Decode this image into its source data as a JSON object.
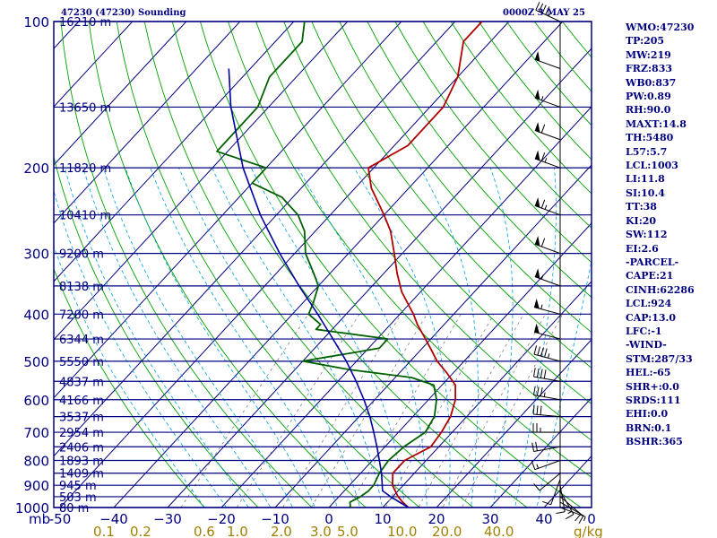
{
  "header": {
    "station": "47230 (47230) Sounding",
    "time": "0000Z  3 MAY 25"
  },
  "stats": [
    "WMO:47230",
    "TP:205",
    "MW:219",
    "FRZ:833",
    "WB0:837",
    "PW:0.89",
    "RH:90.0",
    "MAXT:14.8",
    "TH:5480",
    "L57:5.7",
    "LCL:1003",
    "LI:11.8",
    "SI:10.4",
    "TT:38",
    "KI:20",
    "SW:112",
    "EI:2.6",
    "-PARCEL-",
    "CAPE:21",
    "CINH:62286",
    "LCL:924",
    "CAP:13.0",
    "LFC:-1",
    "-WIND-",
    "STM:287/33",
    "HEL:-65",
    "SHR+:0.0",
    "SRDS:111",
    "EHI:0.0",
    "BRN:0.1",
    "BSHR:365"
  ],
  "colors": {
    "frame": "#000080",
    "isobar": "#000080",
    "isotherm": "#000080",
    "dry_adiabat": "#000080",
    "moist_adiabat": "#00a000",
    "mixing_ratio": "#00a0e0",
    "temperature": "#b00000",
    "dewpoint": "#006000",
    "parcel": "#0000a0",
    "wind_barb": "#000000",
    "axis_text": "#000080",
    "mixing_text": "#a08000"
  },
  "chart_data": {
    "type": "line",
    "diagram": "skew-T log-p",
    "pressure_ticks": [
      100,
      200,
      300,
      400,
      500,
      600,
      700,
      800,
      900,
      1000
    ],
    "temperature_ticks": [
      -50,
      -40,
      -30,
      -20,
      -10,
      0,
      10,
      20,
      30,
      40
    ],
    "temperature_tick_labels": [
      "-50",
      "−40",
      "−30",
      "−20",
      "−10",
      "0",
      "10",
      "20",
      "30",
      "40"
    ],
    "bottom_left_label": "mb",
    "mixing_ratio_labels": [
      "0.1",
      "0.2",
      "0.6",
      "1.0",
      "2.0",
      "3.0",
      "5.0",
      "10.0",
      "20.0",
      "40.0"
    ],
    "mixing_ratio_unit": "g/kg",
    "wind_axis_label": "0",
    "height_labels": [
      {
        "p": 100,
        "label": "16210 m"
      },
      {
        "p": 150,
        "label": "13650 m"
      },
      {
        "p": 200,
        "label": "11820 m"
      },
      {
        "p": 250,
        "label": "10410 m"
      },
      {
        "p": 300,
        "label": "9200 m"
      },
      {
        "p": 350,
        "label": "8138 m"
      },
      {
        "p": 400,
        "label": "7200 m"
      },
      {
        "p": 450,
        "label": "6344 m"
      },
      {
        "p": 500,
        "label": "5550 m"
      },
      {
        "p": 550,
        "label": "4837 m"
      },
      {
        "p": 600,
        "label": "4166 m"
      },
      {
        "p": 650,
        "label": "3537 m"
      },
      {
        "p": 700,
        "label": "2954 m"
      },
      {
        "p": 750,
        "label": "2406 m"
      },
      {
        "p": 800,
        "label": "1893 m"
      },
      {
        "p": 850,
        "label": "1409 m"
      },
      {
        "p": 900,
        "label": "945 m"
      },
      {
        "p": 950,
        "label": "503 m"
      },
      {
        "p": 1000,
        "label": "80 m"
      }
    ],
    "series": [
      {
        "kind": "temperature",
        "points": [
          [
            1006,
            15.0
          ],
          [
            1000,
            14.8
          ],
          [
            975,
            12.8
          ],
          [
            950,
            11.0
          ],
          [
            925,
            9.5
          ],
          [
            900,
            8.0
          ],
          [
            850,
            6.0
          ],
          [
            800,
            6.0
          ],
          [
            750,
            8.5
          ],
          [
            700,
            8.0
          ],
          [
            650,
            7.0
          ],
          [
            600,
            5.0
          ],
          [
            560,
            2.5
          ],
          [
            530,
            -1.0
          ],
          [
            500,
            -5.0
          ],
          [
            470,
            -8.5
          ],
          [
            450,
            -11.0
          ],
          [
            420,
            -15.0
          ],
          [
            400,
            -17.5
          ],
          [
            360,
            -23.5
          ],
          [
            330,
            -27.5
          ],
          [
            300,
            -31.5
          ],
          [
            270,
            -36.0
          ],
          [
            250,
            -40.0
          ],
          [
            220,
            -47.0
          ],
          [
            200,
            -51.0
          ],
          [
            180,
            -47.5
          ],
          [
            150,
            -47.5
          ],
          [
            130,
            -50.0
          ],
          [
            110,
            -55.0
          ],
          [
            100,
            -55.0
          ]
        ]
      },
      {
        "kind": "dewpoint",
        "points": [
          [
            1006,
            6.0
          ],
          [
            1000,
            4.0
          ],
          [
            975,
            3.0
          ],
          [
            950,
            4.0
          ],
          [
            925,
            4.5
          ],
          [
            900,
            4.5
          ],
          [
            850,
            3.5
          ],
          [
            800,
            3.0
          ],
          [
            750,
            3.5
          ],
          [
            700,
            5.0
          ],
          [
            650,
            4.0
          ],
          [
            600,
            1.5
          ],
          [
            560,
            -1.5
          ],
          [
            540,
            -7.0
          ],
          [
            520,
            -20.0
          ],
          [
            500,
            -30.0
          ],
          [
            480,
            -22.0
          ],
          [
            470,
            -18.0
          ],
          [
            450,
            -18.0
          ],
          [
            430,
            -33.0
          ],
          [
            420,
            -33.0
          ],
          [
            400,
            -37.0
          ],
          [
            380,
            -38.0
          ],
          [
            350,
            -40.0
          ],
          [
            330,
            -43.0
          ],
          [
            300,
            -48.0
          ],
          [
            270,
            -52.0
          ],
          [
            250,
            -56.0
          ],
          [
            230,
            -62.0
          ],
          [
            215,
            -70.0
          ],
          [
            200,
            -70.0
          ],
          [
            185,
            -82.0
          ],
          [
            170,
            -82.0
          ],
          [
            150,
            -82.0
          ],
          [
            130,
            -85.0
          ],
          [
            120,
            -85.0
          ],
          [
            110,
            -85.0
          ],
          [
            100,
            -88.0
          ]
        ]
      },
      {
        "kind": "parcel",
        "points": [
          [
            1000,
            14.8
          ],
          [
            975,
            12.2
          ],
          [
            950,
            9.6
          ],
          [
            924,
            7.1
          ],
          [
            900,
            6.1
          ],
          [
            850,
            3.9
          ],
          [
            800,
            1.3
          ],
          [
            750,
            -1.5
          ],
          [
            700,
            -4.6
          ],
          [
            650,
            -8.0
          ],
          [
            600,
            -12.0
          ],
          [
            550,
            -16.6
          ],
          [
            500,
            -21.9
          ],
          [
            450,
            -28.2
          ],
          [
            400,
            -35.3
          ],
          [
            350,
            -43.6
          ],
          [
            300,
            -52.8
          ],
          [
            250,
            -63.0
          ],
          [
            200,
            -74.3
          ],
          [
            150,
            -87.0
          ],
          [
            125,
            -94.0
          ]
        ]
      }
    ],
    "wind_profile": [
      {
        "p": 1000,
        "dir": 110,
        "speed": 5
      },
      {
        "p": 975,
        "dir": 120,
        "speed": 10
      },
      {
        "p": 950,
        "dir": 130,
        "speed": 10
      },
      {
        "p": 925,
        "dir": 150,
        "speed": 15
      },
      {
        "p": 900,
        "dir": 170,
        "speed": 10
      },
      {
        "p": 875,
        "dir": 200,
        "speed": 10
      },
      {
        "p": 850,
        "dir": 230,
        "speed": 10
      },
      {
        "p": 800,
        "dir": 250,
        "speed": 15
      },
      {
        "p": 750,
        "dir": 260,
        "speed": 20
      },
      {
        "p": 700,
        "dir": 270,
        "speed": 25
      },
      {
        "p": 650,
        "dir": 275,
        "speed": 30
      },
      {
        "p": 600,
        "dir": 280,
        "speed": 35
      },
      {
        "p": 550,
        "dir": 280,
        "speed": 40
      },
      {
        "p": 500,
        "dir": 285,
        "speed": 45
      },
      {
        "p": 450,
        "dir": 285,
        "speed": 50
      },
      {
        "p": 400,
        "dir": 285,
        "speed": 55
      },
      {
        "p": 350,
        "dir": 290,
        "speed": 55
      },
      {
        "p": 300,
        "dir": 290,
        "speed": 60
      },
      {
        "p": 250,
        "dir": 290,
        "speed": 65
      },
      {
        "p": 200,
        "dir": 290,
        "speed": 65
      },
      {
        "p": 175,
        "dir": 290,
        "speed": 60
      },
      {
        "p": 150,
        "dir": 290,
        "speed": 55
      },
      {
        "p": 125,
        "dir": 290,
        "speed": 50
      },
      {
        "p": 100,
        "dir": 295,
        "speed": 45
      }
    ]
  }
}
